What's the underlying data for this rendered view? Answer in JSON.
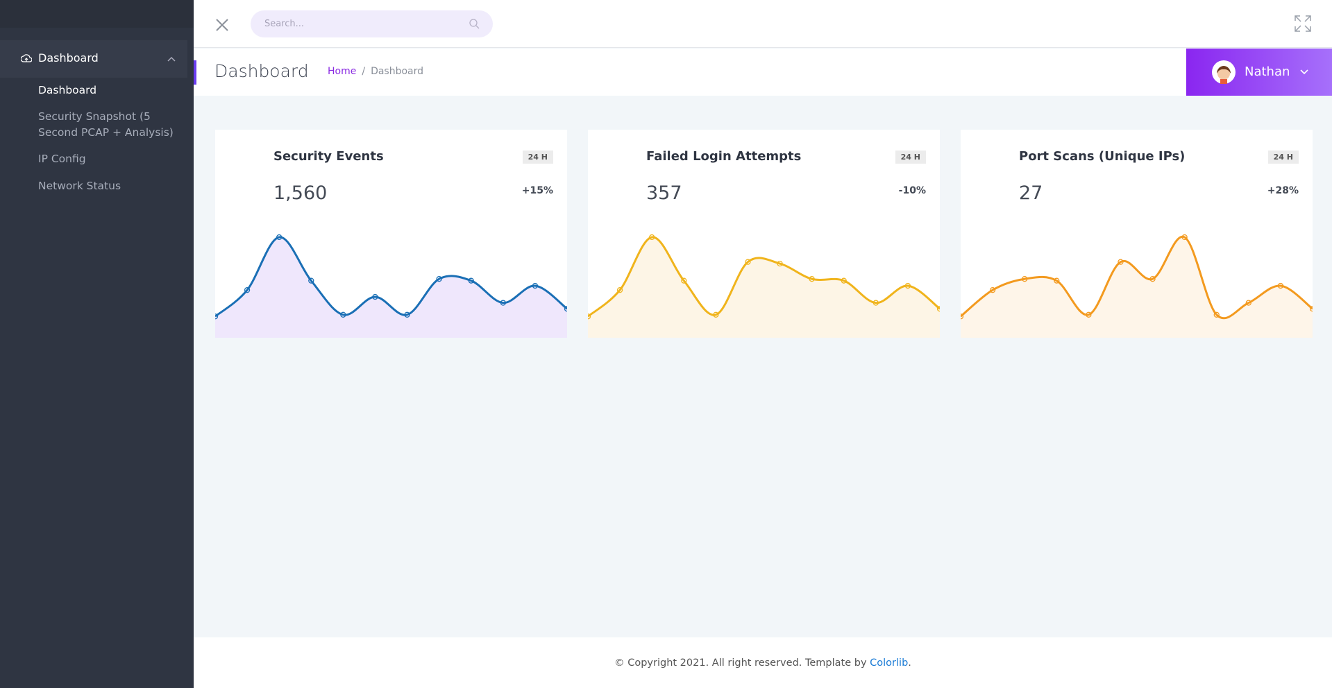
{
  "sidebar": {
    "menu": "Dashboard",
    "items": [
      "Dashboard",
      "Security Snapshot (5 Second PCAP + Analysis)",
      "IP Config",
      "Network Status"
    ]
  },
  "header": {
    "search_placeholder": "Search..."
  },
  "page": {
    "title": "Dashboard",
    "breadcrumb": [
      "Home",
      "/",
      "Dashboard"
    ],
    "user": "Nathan"
  },
  "chart_data": [
    {
      "type": "area",
      "title": "Security Events",
      "badge": "24 H",
      "total": "1,560",
      "change": "+15%",
      "color": "#1a6fb5",
      "fill": "#efe7fc",
      "values": [
        25,
        56,
        118,
        67,
        27,
        48,
        27,
        69,
        67,
        41,
        61,
        34
      ]
    },
    {
      "type": "area",
      "title": "Failed Login Attempts",
      "badge": "24 H",
      "total": "357",
      "change": "-10%",
      "color": "#f0b41c",
      "fill": "#fdf5e6",
      "values": [
        25,
        56,
        118,
        67,
        27,
        89,
        87,
        69,
        67,
        41,
        61,
        34
      ]
    },
    {
      "type": "area",
      "title": "Port Scans (Unique IPs)",
      "badge": "24 H",
      "total": "27",
      "change": "+28%",
      "color": "#f39a1f",
      "fill": "#fef5e9",
      "values": [
        25,
        56,
        69,
        67,
        27,
        89,
        69,
        118,
        27,
        41,
        61,
        34
      ]
    }
  ],
  "footer": {
    "text": "© Copyright 2021. All right reserved. Template by ",
    "link": "Colorlib",
    "suffix": "."
  }
}
